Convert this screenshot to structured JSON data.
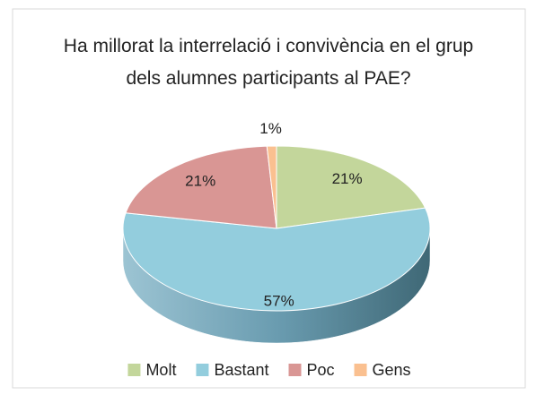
{
  "chart_data": {
    "type": "pie",
    "title": "Ha millorat la interrelació i convivència en el grup dels alumnes participants al PAE?",
    "categories": [
      "Molt",
      "Bastant",
      "Poc",
      "Gens"
    ],
    "values": [
      21,
      57,
      21,
      1
    ],
    "value_labels": [
      "21%",
      "57%",
      "21%",
      "1%"
    ],
    "colors": [
      "#c3d69b",
      "#93cddd",
      "#d99694",
      "#fac090"
    ],
    "legend": "bottom"
  }
}
